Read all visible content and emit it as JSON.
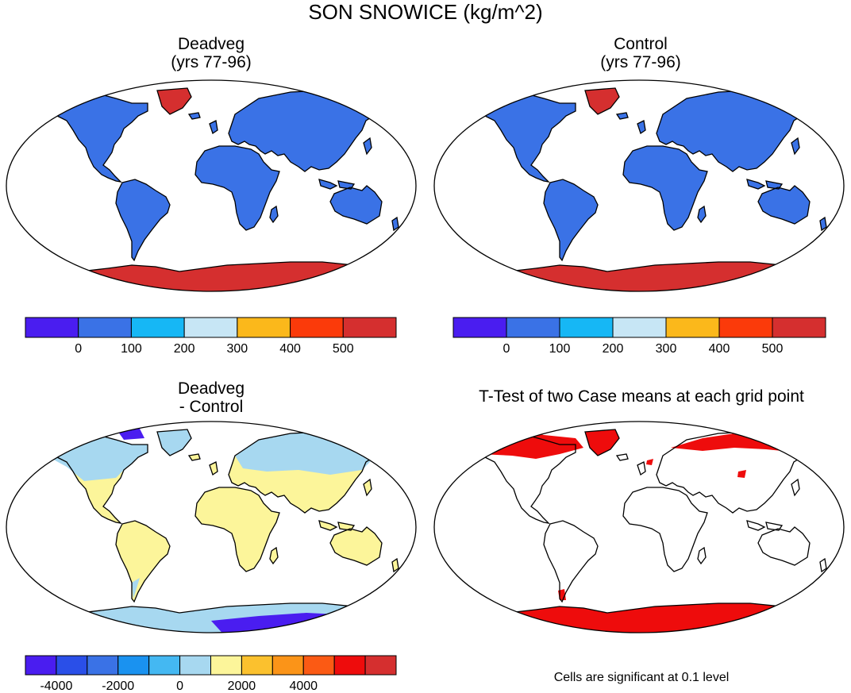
{
  "main_title": "SON SNOWICE (kg/m^2)",
  "panels": {
    "top_left": {
      "title_line1": "Deadveg",
      "title_line2": "(yrs 77-96)"
    },
    "top_right": {
      "title_line1": "Control",
      "title_line2": "(yrs 77-96)"
    },
    "bottom_left": {
      "title_line1": "Deadveg",
      "title_line2": "- Control"
    },
    "bottom_right": {
      "title_line1": "T-Test of two Case means at each grid point"
    }
  },
  "colorbar_abs": {
    "colors": [
      "#4a1df0",
      "#3a72e6",
      "#16b7f5",
      "#c7e6f5",
      "#fbb81b",
      "#fb3a0a",
      "#d52f2f"
    ],
    "labels": [
      "0",
      "100",
      "200",
      "300",
      "400",
      "500"
    ]
  },
  "colorbar_diff": {
    "colors": [
      "#4a1df0",
      "#2a4fe8",
      "#3a72e6",
      "#1a92f0",
      "#44b8f2",
      "#a7d8f0",
      "#fcf59a",
      "#fbc12e",
      "#fb9418",
      "#fb5a14",
      "#ee0c0c",
      "#d52f2f"
    ],
    "labels": [
      "-4000",
      "-2000",
      "0",
      "2000",
      "4000"
    ]
  },
  "footnote": "Cells are significant at 0.1 level",
  "fill_colors": {
    "land": "#3a72e6",
    "ice": "#d52f2f",
    "diff_land": "#fcf59a",
    "diff_snow": "#a7d8f0",
    "diff_neg": "#4a1df0",
    "significant": "#ee0c0c"
  }
}
